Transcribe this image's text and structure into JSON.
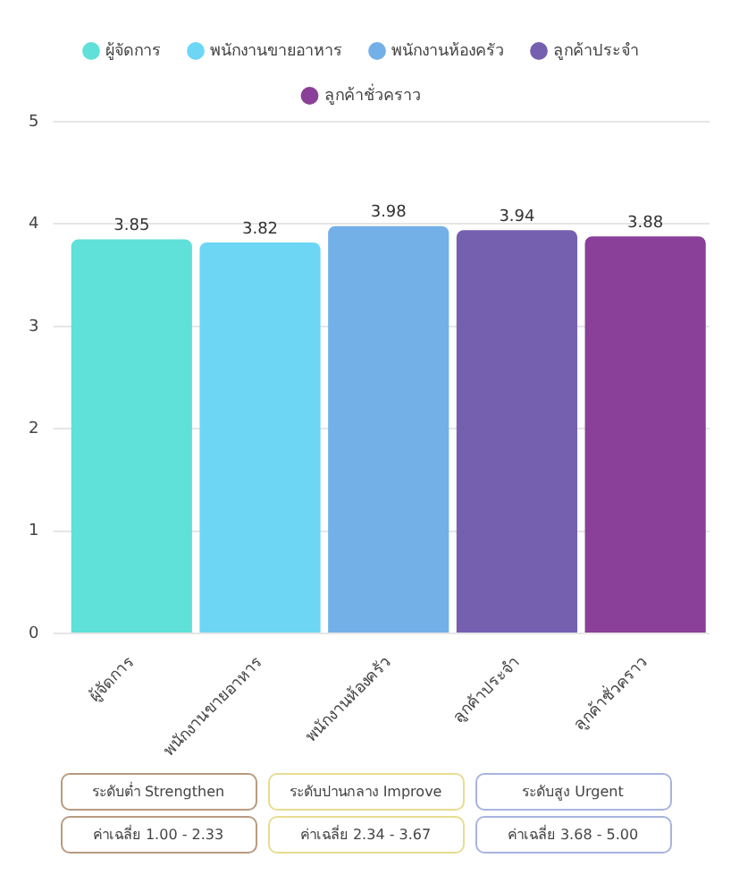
{
  "chart_data": {
    "type": "bar",
    "categories": [
      "ผู้จัดการ",
      "พนักงานขายอาหาร",
      "พนักงานห้องครัว",
      "ลูกค้าประจำ",
      "ลูกค้าชั่วคราว"
    ],
    "series": [
      {
        "name": "ผู้จัดการ",
        "color": "#5fe0d8",
        "values": [
          3.85,
          null,
          null,
          null,
          null
        ]
      },
      {
        "name": "พนักงานขายอาหาร",
        "color": "#6dd6f5",
        "values": [
          null,
          3.82,
          null,
          null,
          null
        ]
      },
      {
        "name": "พนักงานห้องครัว",
        "color": "#74b0e8",
        "values": [
          null,
          null,
          3.98,
          null,
          null
        ]
      },
      {
        "name": "ลูกค้าประจำ",
        "color": "#7560b0",
        "values": [
          null,
          null,
          null,
          3.94,
          null
        ]
      },
      {
        "name": "ลูกค้าชั่วคราว",
        "color": "#8a3f98",
        "values": [
          null,
          null,
          null,
          null,
          3.88
        ]
      }
    ],
    "ylim": [
      0,
      5
    ],
    "yticks": [
      0,
      1,
      2,
      3,
      4,
      5
    ],
    "grid": "y",
    "legend": "top",
    "data_labels": true,
    "annotations": [
      "ระดับต่ำ Strengthen",
      "ระดับปานกลาง Improve",
      "ระดับสูง Urgent",
      "ค่าเฉลี่ย 1.00 - 2.33",
      "ค่าเฉลี่ย 2.34 - 3.67",
      "ค่าเฉลี่ย 3.68 - 5.00"
    ]
  }
}
